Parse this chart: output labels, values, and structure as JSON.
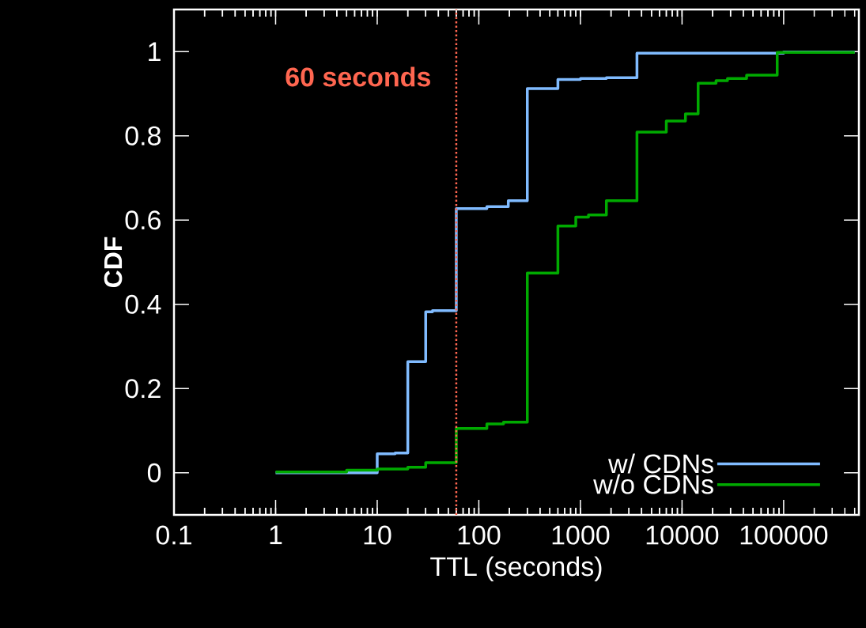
{
  "chart_data": {
    "type": "step",
    "xlabel": "TTL (seconds)",
    "ylabel": "CDF",
    "log": "x",
    "xlim": [
      0.1,
      550000
    ],
    "ylim": [
      -0.1,
      1.1
    ],
    "xticks": [
      0.1,
      1,
      10,
      100,
      1000,
      10000,
      100000
    ],
    "yticks": [
      0,
      0.2,
      0.4,
      0.6,
      0.8,
      1
    ],
    "legend": "bottom right",
    "ref_lines": [
      {
        "axis": "x",
        "value": 60,
        "label": "60 seconds",
        "color": "#ff6650",
        "line_style": "dotted"
      }
    ],
    "series": [
      {
        "name": "w/ CDNs",
        "color": "#80bbff",
        "x": [
          1,
          10,
          15,
          20,
          30,
          35,
          60,
          120,
          195,
          300,
          600,
          1000,
          1800,
          3600,
          100000,
          500000
        ],
        "values": [
          0,
          0,
          0.045,
          0.047,
          0.264,
          0.382,
          0.385,
          0.627,
          0.632,
          0.646,
          0.912,
          0.934,
          0.936,
          0.938,
          0.996,
          0.999
        ]
      },
      {
        "name": "w/o CDNs",
        "color": "#00aa00",
        "x": [
          1,
          5,
          10,
          20,
          30,
          60,
          120,
          175,
          300,
          600,
          900,
          1200,
          1800,
          3600,
          7000,
          10800,
          14400,
          21600,
          28000,
          43200,
          86400,
          500000
        ],
        "values": [
          0.002,
          0.002,
          0.006,
          0.009,
          0.013,
          0.024,
          0.105,
          0.116,
          0.12,
          0.474,
          0.586,
          0.607,
          0.612,
          0.646,
          0.809,
          0.835,
          0.852,
          0.925,
          0.931,
          0.936,
          0.944,
          0.998
        ]
      }
    ]
  }
}
